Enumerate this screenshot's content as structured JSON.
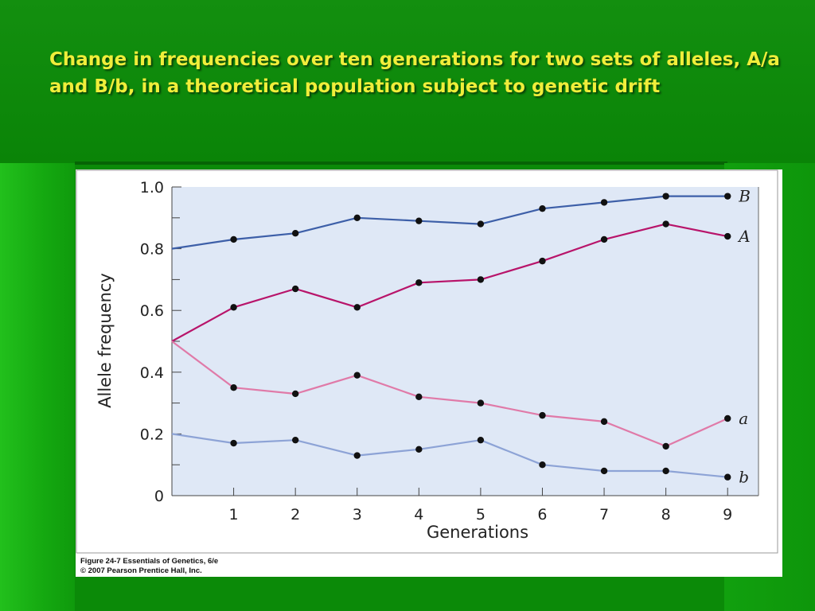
{
  "slide": {
    "title": "Change in frequencies over ten generations for two sets of alleles, A/a and B/b, in a theoretical population subject to genetic drift"
  },
  "figure": {
    "caption_line1": "Figure 24-7  Essentials of Genetics, 6/e",
    "caption_line2": "© 2007 Pearson Prentice Hall, Inc."
  },
  "colors": {
    "slide_background": "#0b8a08",
    "title_text": "#f0ee3a",
    "plot_background": "#dfe8f6",
    "series_B": "#3d5fa8",
    "series_A": "#b8146a",
    "series_a": "#e07aa8",
    "series_b": "#8da3d6"
  },
  "chart_data": {
    "type": "line",
    "xlabel": "Generations",
    "ylabel": "Allele frequency",
    "xlim": [
      0,
      9.5
    ],
    "ylim": [
      0,
      1.0
    ],
    "x_ticks": [
      "1",
      "2",
      "3",
      "4",
      "5",
      "6",
      "7",
      "8",
      "9"
    ],
    "y_ticks": [
      "0",
      "0.2",
      "0.4",
      "0.6",
      "0.8",
      "1.0"
    ],
    "y_tick_values": [
      0,
      0.2,
      0.4,
      0.6,
      0.8,
      1.0
    ],
    "grid": false,
    "x": [
      0,
      1,
      2,
      3,
      4,
      5,
      6,
      7,
      8,
      9
    ],
    "series": [
      {
        "name": "B",
        "color": "#3d5fa8",
        "values": [
          0.8,
          0.83,
          0.85,
          0.9,
          0.89,
          0.88,
          0.93,
          0.95,
          0.97,
          0.97
        ]
      },
      {
        "name": "A",
        "color": "#b8146a",
        "values": [
          0.5,
          0.61,
          0.67,
          0.61,
          0.69,
          0.7,
          0.76,
          0.83,
          0.88,
          0.84
        ]
      },
      {
        "name": "a",
        "color": "#e07aa8",
        "values": [
          0.5,
          0.35,
          0.33,
          0.39,
          0.32,
          0.3,
          0.26,
          0.24,
          0.16,
          0.25
        ]
      },
      {
        "name": "b",
        "color": "#8da3d6",
        "values": [
          0.2,
          0.17,
          0.18,
          0.13,
          0.15,
          0.18,
          0.1,
          0.08,
          0.08,
          0.06
        ]
      }
    ]
  }
}
